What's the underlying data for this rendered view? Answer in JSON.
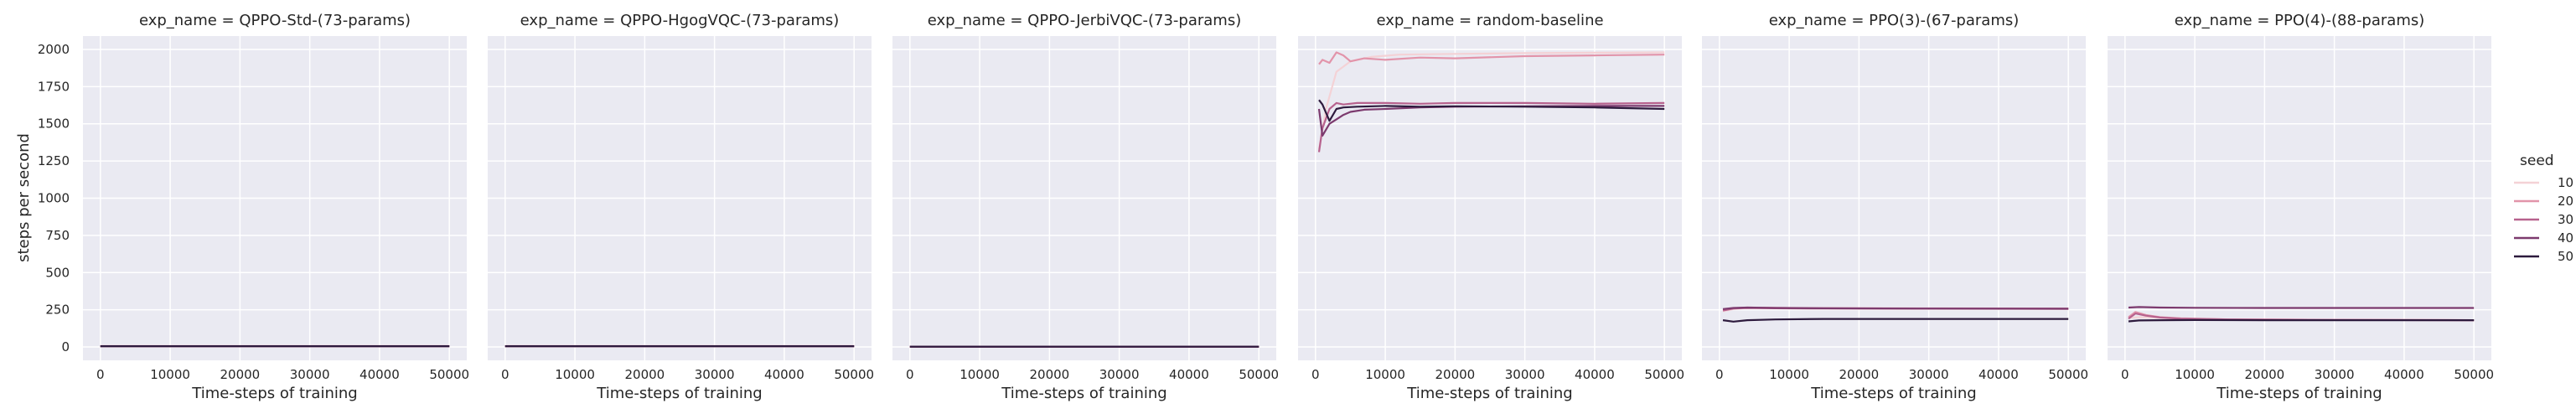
{
  "figure": {
    "ylabel": "steps per second",
    "panel_bg": "#eaeaf2",
    "grid_color": "#ffffff"
  },
  "legend": {
    "title": "seed",
    "entries": [
      {
        "label": "10",
        "color": "#f4d2d6"
      },
      {
        "label": "20",
        "color": "#e294aa"
      },
      {
        "label": "30",
        "color": "#b7628e"
      },
      {
        "label": "40",
        "color": "#7c3a6e"
      },
      {
        "label": "50",
        "color": "#2d1a3d"
      }
    ]
  },
  "chart_data": [
    {
      "type": "line",
      "title": "exp_name = QPPO-Std-(73-params)",
      "xlabel": "Time-steps of training",
      "ylabel": "steps per second",
      "xlim": [
        -2500,
        52500
      ],
      "ylim": [
        -90,
        2090
      ],
      "xticks": [
        0,
        10000,
        20000,
        30000,
        40000,
        50000
      ],
      "yticks": [
        0,
        250,
        500,
        750,
        1000,
        1250,
        1500,
        1750,
        2000
      ],
      "show_yticklabels": true,
      "grid": true,
      "series": [
        {
          "name": "10",
          "x": [
            0,
            50000
          ],
          "y": [
            6,
            6
          ]
        },
        {
          "name": "20",
          "x": [
            0,
            50000
          ],
          "y": [
            6,
            6
          ]
        },
        {
          "name": "30",
          "x": [
            0,
            50000
          ],
          "y": [
            5,
            5
          ]
        },
        {
          "name": "40",
          "x": [
            0,
            50000
          ],
          "y": [
            5,
            5
          ]
        },
        {
          "name": "50",
          "x": [
            0,
            50000
          ],
          "y": [
            5,
            5
          ]
        }
      ]
    },
    {
      "type": "line",
      "title": "exp_name = QPPO-HgogVQC-(73-params)",
      "xlabel": "Time-steps of training",
      "xlim": [
        -2500,
        52500
      ],
      "ylim": [
        -90,
        2090
      ],
      "xticks": [
        0,
        10000,
        20000,
        30000,
        40000,
        50000
      ],
      "yticks": [
        0,
        250,
        500,
        750,
        1000,
        1250,
        1500,
        1750,
        2000
      ],
      "show_yticklabels": false,
      "grid": true,
      "series": [
        {
          "name": "10",
          "x": [
            0,
            50000
          ],
          "y": [
            6,
            6
          ]
        },
        {
          "name": "20",
          "x": [
            0,
            50000
          ],
          "y": [
            6,
            6
          ]
        },
        {
          "name": "30",
          "x": [
            0,
            50000
          ],
          "y": [
            5,
            5
          ]
        },
        {
          "name": "40",
          "x": [
            0,
            50000
          ],
          "y": [
            5,
            5
          ]
        },
        {
          "name": "50",
          "x": [
            0,
            50000
          ],
          "y": [
            5,
            5
          ]
        }
      ]
    },
    {
      "type": "line",
      "title": "exp_name = QPPO-JerbiVQC-(73-params)",
      "xlabel": "Time-steps of training",
      "xlim": [
        -2500,
        52500
      ],
      "ylim": [
        -90,
        2090
      ],
      "xticks": [
        0,
        10000,
        20000,
        30000,
        40000,
        50000
      ],
      "yticks": [
        0,
        250,
        500,
        750,
        1000,
        1250,
        1500,
        1750,
        2000
      ],
      "show_yticklabels": false,
      "grid": true,
      "series": [
        {
          "name": "10",
          "x": [
            0,
            50000
          ],
          "y": [
            2,
            2
          ]
        },
        {
          "name": "20",
          "x": [
            0,
            50000
          ],
          "y": [
            2,
            2
          ]
        },
        {
          "name": "30",
          "x": [
            0,
            50000
          ],
          "y": [
            2,
            2
          ]
        },
        {
          "name": "40",
          "x": [
            0,
            50000
          ],
          "y": [
            2,
            2
          ]
        },
        {
          "name": "50",
          "x": [
            0,
            50000
          ],
          "y": [
            2,
            2
          ]
        }
      ]
    },
    {
      "type": "line",
      "title": "exp_name = random-baseline",
      "xlabel": "Time-steps of training",
      "xlim": [
        -2500,
        52500
      ],
      "ylim": [
        -90,
        2090
      ],
      "xticks": [
        0,
        10000,
        20000,
        30000,
        40000,
        50000
      ],
      "yticks": [
        0,
        250,
        500,
        750,
        1000,
        1250,
        1500,
        1750,
        2000
      ],
      "show_yticklabels": false,
      "grid": true,
      "series": [
        {
          "name": "10",
          "x": [
            500,
            1500,
            3000,
            5000,
            8000,
            12000,
            20000,
            30000,
            40000,
            50000
          ],
          "y": [
            1330,
            1600,
            1850,
            1920,
            1950,
            1965,
            1970,
            1975,
            1978,
            1980
          ]
        },
        {
          "name": "20",
          "x": [
            500,
            1000,
            2000,
            3000,
            4000,
            5000,
            7000,
            10000,
            15000,
            20000,
            30000,
            40000,
            50000
          ],
          "y": [
            1900,
            1930,
            1910,
            1980,
            1960,
            1920,
            1940,
            1930,
            1945,
            1940,
            1955,
            1960,
            1965
          ]
        },
        {
          "name": "30",
          "x": [
            500,
            1000,
            2000,
            3000,
            4000,
            6000,
            10000,
            15000,
            20000,
            30000,
            40000,
            50000
          ],
          "y": [
            1310,
            1470,
            1600,
            1640,
            1630,
            1640,
            1640,
            1635,
            1640,
            1640,
            1635,
            1640
          ]
        },
        {
          "name": "40",
          "x": [
            500,
            1000,
            2000,
            3000,
            4000,
            5000,
            7000,
            10000,
            15000,
            20000,
            30000,
            40000,
            50000
          ],
          "y": [
            1600,
            1420,
            1500,
            1530,
            1560,
            1580,
            1595,
            1600,
            1610,
            1615,
            1618,
            1620,
            1620
          ]
        },
        {
          "name": "50",
          "x": [
            500,
            1000,
            2000,
            3000,
            4000,
            6000,
            10000,
            15000,
            20000,
            30000,
            40000,
            50000
          ],
          "y": [
            1660,
            1630,
            1520,
            1600,
            1610,
            1615,
            1620,
            1615,
            1618,
            1615,
            1610,
            1600
          ]
        }
      ]
    },
    {
      "type": "line",
      "title": "exp_name = PPO(3)-(67-params)",
      "xlabel": "Time-steps of training",
      "xlim": [
        -2500,
        52500
      ],
      "ylim": [
        -90,
        2090
      ],
      "xticks": [
        0,
        10000,
        20000,
        30000,
        40000,
        50000
      ],
      "yticks": [
        0,
        250,
        500,
        750,
        1000,
        1250,
        1500,
        1750,
        2000
      ],
      "show_yticklabels": false,
      "grid": true,
      "series": [
        {
          "name": "10",
          "x": [
            500,
            2000,
            4000,
            8000,
            15000,
            30000,
            50000
          ],
          "y": [
            240,
            255,
            262,
            262,
            260,
            258,
            258
          ]
        },
        {
          "name": "20",
          "x": [
            500,
            2000,
            4000,
            8000,
            15000,
            30000,
            50000
          ],
          "y": [
            250,
            260,
            265,
            263,
            261,
            259,
            258
          ]
        },
        {
          "name": "30",
          "x": [
            500,
            2000,
            4000,
            8000,
            15000,
            30000,
            50000
          ],
          "y": [
            245,
            258,
            262,
            260,
            258,
            257,
            256
          ]
        },
        {
          "name": "40",
          "x": [
            500,
            2000,
            4000,
            8000,
            15000,
            30000,
            50000
          ],
          "y": [
            255,
            262,
            265,
            262,
            260,
            258,
            257
          ]
        },
        {
          "name": "50",
          "x": [
            500,
            2000,
            4000,
            8000,
            15000,
            30000,
            50000
          ],
          "y": [
            180,
            170,
            180,
            185,
            188,
            188,
            188
          ]
        }
      ]
    },
    {
      "type": "line",
      "title": "exp_name = PPO(4)-(88-params)",
      "xlabel": "Time-steps of training",
      "xlim": [
        -2500,
        52500
      ],
      "ylim": [
        -90,
        2090
      ],
      "xticks": [
        0,
        10000,
        20000,
        30000,
        40000,
        50000
      ],
      "yticks": [
        0,
        250,
        500,
        750,
        1000,
        1250,
        1500,
        1750,
        2000
      ],
      "show_yticklabels": false,
      "grid": true,
      "series": [
        {
          "name": "10",
          "x": [
            500,
            2000,
            4000,
            8000,
            15000,
            30000,
            50000
          ],
          "y": [
            195,
            200,
            198,
            190,
            185,
            182,
            180
          ]
        },
        {
          "name": "20",
          "x": [
            500,
            1500,
            3000,
            5000,
            8000,
            15000,
            30000,
            50000
          ],
          "y": [
            200,
            235,
            215,
            200,
            192,
            185,
            182,
            180
          ]
        },
        {
          "name": "30",
          "x": [
            500,
            1500,
            3000,
            5000,
            8000,
            15000,
            30000,
            50000
          ],
          "y": [
            190,
            225,
            210,
            198,
            190,
            185,
            182,
            180
          ]
        },
        {
          "name": "40",
          "x": [
            500,
            2000,
            5000,
            10000,
            20000,
            35000,
            50000
          ],
          "y": [
            265,
            268,
            265,
            263,
            262,
            262,
            262
          ]
        },
        {
          "name": "50",
          "x": [
            500,
            2000,
            5000,
            10000,
            20000,
            35000,
            50000
          ],
          "y": [
            172,
            178,
            180,
            181,
            180,
            180,
            180
          ]
        }
      ]
    }
  ]
}
